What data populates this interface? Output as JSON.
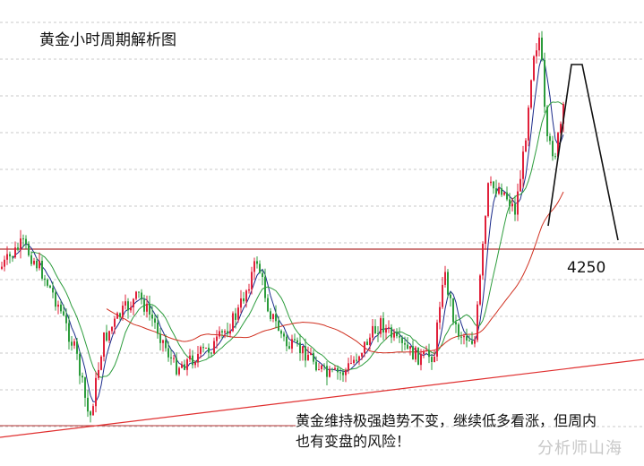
{
  "chart_data": {
    "type": "candlestick",
    "title": "黄金小时周期解析图",
    "annotation_level": "4250",
    "note_line1": "黄金维持极强趋势不变，继续低多看涨，但周内",
    "note_line2": "也有变盘的风险！",
    "watermark": "分析师山海",
    "level_value": 4250,
    "colors": {
      "up": "#e0203a",
      "down": "#2c9c3c",
      "ma_fast": "#1a2a8a",
      "ma_mid": "#2c9c3c",
      "ma_slow": "#d03020",
      "level_line": "#b03030",
      "trend_line": "#e03030",
      "grid": "#c8c8c8",
      "drawn_path": "#111111"
    },
    "grid": "horizontal dashed"
  }
}
